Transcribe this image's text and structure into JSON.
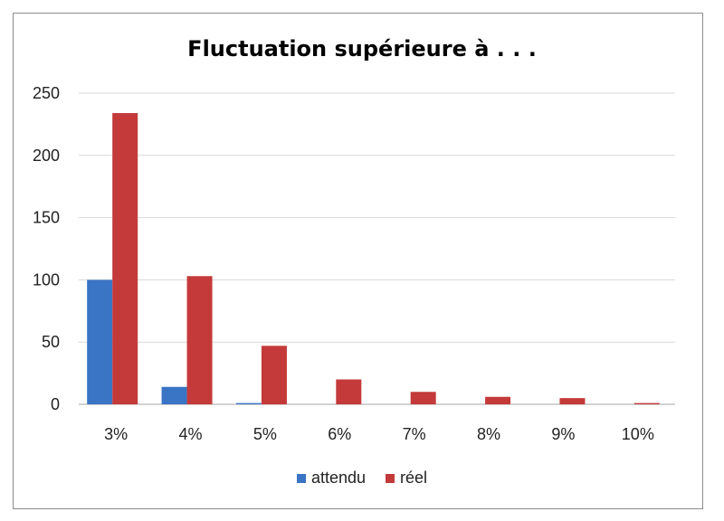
{
  "chart_data": {
    "type": "bar",
    "title": "Fluctuation supérieure à . . .",
    "xlabel": "",
    "ylabel": "",
    "categories": [
      "3%",
      "4%",
      "5%",
      "6%",
      "7%",
      "8%",
      "9%",
      "10%"
    ],
    "series": [
      {
        "name": "attendu",
        "color": "#3a74c4",
        "values": [
          100,
          14,
          1,
          0,
          0,
          0,
          0,
          0
        ]
      },
      {
        "name": "réel",
        "color": "#c43a3a",
        "values": [
          234,
          103,
          47,
          20,
          10,
          6,
          5,
          1
        ]
      }
    ],
    "ylim": [
      0,
      250
    ],
    "yticks": [
      0,
      50,
      100,
      150,
      200,
      250
    ],
    "grid": true,
    "legend_position": "bottom"
  }
}
